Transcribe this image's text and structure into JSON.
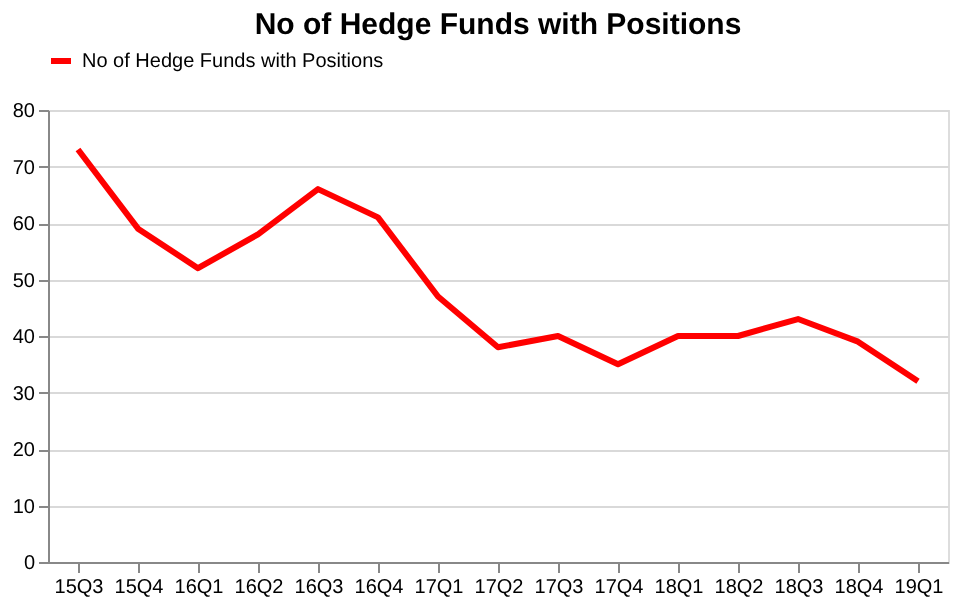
{
  "chart_data": {
    "type": "line",
    "title": "No of Hedge Funds with Positions",
    "categories": [
      "15Q3",
      "15Q4",
      "16Q1",
      "16Q2",
      "16Q3",
      "16Q4",
      "17Q1",
      "17Q2",
      "17Q3",
      "17Q4",
      "18Q1",
      "18Q2",
      "18Q3",
      "18Q4",
      "19Q1"
    ],
    "series": [
      {
        "name": "No of Hedge Funds with Positions",
        "color": "#ff0000",
        "values": [
          73,
          59,
          52,
          58,
          66,
          61,
          47,
          38,
          40,
          35,
          40,
          40,
          43,
          39,
          32
        ]
      }
    ],
    "ylim": [
      0,
      80
    ],
    "yticks": [
      0,
      10,
      20,
      30,
      40,
      50,
      60,
      70,
      80
    ],
    "grid": "y",
    "legend": "top",
    "marker": "none",
    "line_style": "solid"
  }
}
